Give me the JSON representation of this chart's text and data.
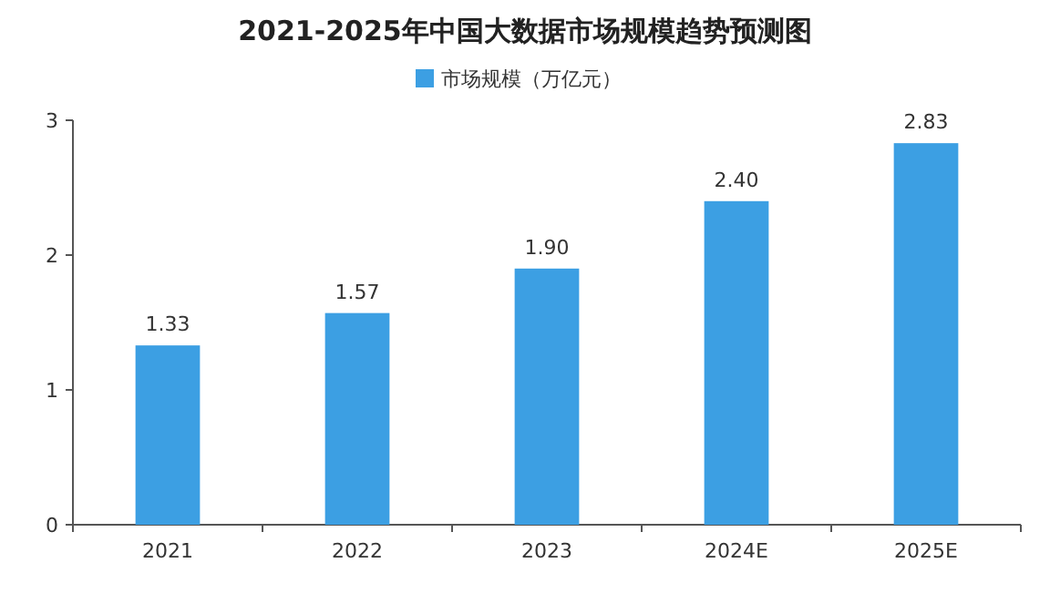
{
  "chart_data": {
    "type": "bar",
    "title": "2021-2025年中国大数据市场规模趋势预测图",
    "categories": [
      "2021",
      "2022",
      "2023",
      "2024E",
      "2025E"
    ],
    "series": [
      {
        "name": "市场规模（万亿元）",
        "color": "#3c9fe3",
        "values": [
          1.33,
          1.57,
          1.9,
          2.4,
          2.83
        ],
        "value_labels": [
          "1.33",
          "1.57",
          "1.90",
          "2.40",
          "2.83"
        ]
      }
    ],
    "ylim": [
      0,
      3
    ],
    "yticks": [
      0,
      1,
      2,
      3
    ],
    "legend": "top",
    "grid": false
  }
}
